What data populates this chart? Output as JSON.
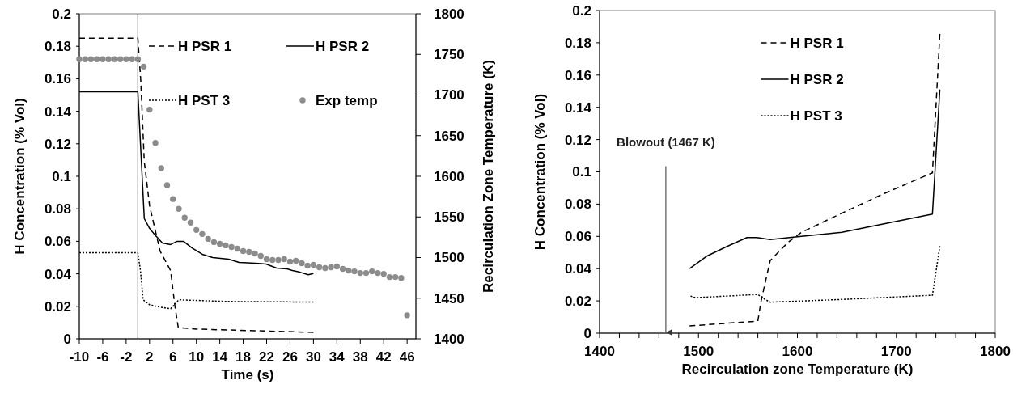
{
  "chart_data": [
    {
      "type": "line",
      "xlabel": "Time (s)",
      "ylabel": "H Concentration (% Vol)",
      "y2label": "Recirculation Zone Temperature (K)",
      "xlim": [
        -10,
        47.5
      ],
      "xticks": [
        -10,
        -6,
        -2,
        2,
        6,
        10,
        14,
        18,
        22,
        26,
        30,
        34,
        38,
        42,
        46
      ],
      "ylim": [
        0,
        0.2
      ],
      "yticks": [
        0,
        0.02,
        0.04,
        0.06,
        0.08,
        0.1,
        0.12,
        0.14,
        0.16,
        0.18,
        0.2
      ],
      "y2lim": [
        1400,
        1800
      ],
      "y2ticks": [
        1400,
        1450,
        1500,
        1550,
        1600,
        1650,
        1700,
        1750,
        1800
      ],
      "grid": false,
      "legend": "top right",
      "ref_lines": [
        {
          "axis": "x",
          "value": 0,
          "color": "#000000",
          "line_style": "solid"
        }
      ],
      "series": [
        {
          "name": "H PSR 1",
          "color": "#000000",
          "line_style": "dashed",
          "x": [
            -10,
            0,
            0.5,
            1.1,
            2,
            3.8,
            5.6,
            6.3,
            6.9,
            10,
            20,
            30
          ],
          "values": [
            0.185,
            0.185,
            0.159,
            0.109,
            0.082,
            0.054,
            0.042,
            0.021,
            0.007,
            0.006,
            0.005,
            0.004
          ]
        },
        {
          "name": "H PSR 2",
          "color": "#000000",
          "line_style": "solid",
          "x": [
            -10,
            0,
            1.1,
            2,
            2.9,
            4.2,
            5.6,
            6.7,
            7.8,
            9.2,
            11,
            12.8,
            15.5,
            17.3,
            20.1,
            21.9,
            23.7,
            25.5,
            26.4,
            27.7,
            29.1,
            30
          ],
          "values": [
            0.152,
            0.152,
            0.074,
            0.068,
            0.064,
            0.059,
            0.058,
            0.06,
            0.06,
            0.056,
            0.052,
            0.05,
            0.049,
            0.047,
            0.0465,
            0.046,
            0.0435,
            0.043,
            0.042,
            0.041,
            0.0394,
            0.0402
          ]
        },
        {
          "name": "H PST 3",
          "color": "#000000",
          "line_style": "dotted",
          "x": [
            -10,
            0,
            0.45,
            0.9,
            2,
            3.8,
            5.6,
            6.5,
            7,
            15,
            30
          ],
          "values": [
            0.053,
            0.053,
            0.042,
            0.024,
            0.021,
            0.0195,
            0.0185,
            0.022,
            0.024,
            0.023,
            0.0226
          ]
        },
        {
          "name": "Exp temp",
          "type": "scatter",
          "axis": "y2",
          "marker": "circle",
          "color": "#8c8c8c",
          "x": [
            -10,
            -9,
            -8,
            -7,
            -6,
            -5,
            -4,
            -3,
            -2,
            -1,
            0,
            1,
            2,
            3,
            4,
            5,
            6,
            7,
            8,
            9,
            10,
            11,
            12,
            13,
            14,
            15,
            16,
            17,
            18,
            19,
            20,
            21,
            22,
            23,
            24,
            25,
            26,
            27,
            28,
            29,
            30,
            31,
            32,
            33,
            34,
            35,
            36,
            37,
            38,
            39,
            40,
            41,
            42,
            43,
            44,
            45,
            46
          ],
          "values": [
            1744,
            1744,
            1744,
            1744,
            1744,
            1744,
            1744,
            1744,
            1744,
            1744,
            1744,
            1735,
            1682,
            1641,
            1610,
            1589,
            1572,
            1560,
            1549,
            1543,
            1534,
            1529,
            1523,
            1519,
            1517,
            1515,
            1513,
            1511,
            1508,
            1507,
            1505,
            1502,
            1498,
            1497,
            1497,
            1498,
            1495,
            1496,
            1493,
            1490,
            1491,
            1488,
            1487,
            1488,
            1489,
            1486,
            1484,
            1483,
            1481,
            1481,
            1483,
            1481,
            1480,
            1476,
            1476,
            1475,
            1429
          ]
        }
      ]
    },
    {
      "type": "line",
      "xlabel": "Recirculation zone Temperature (K)",
      "ylabel": "H Concentration (% Vol)",
      "xlim": [
        1400,
        1800
      ],
      "xticks": [
        1400,
        {
          "value": 1420,
          "label": null
        },
        {
          "value": 1440,
          "label": null
        },
        {
          "value": 1460,
          "label": null
        },
        {
          "value": 1480,
          "label": null
        },
        1500,
        {
          "value": 1520,
          "label": null
        },
        {
          "value": 1540,
          "label": null
        },
        {
          "value": 1560,
          "label": null
        },
        {
          "value": 1580,
          "label": null
        },
        1600,
        {
          "value": 1620,
          "label": null
        },
        {
          "value": 1640,
          "label": null
        },
        {
          "value": 1660,
          "label": null
        },
        {
          "value": 1680,
          "label": null
        },
        1700,
        {
          "value": 1720,
          "label": null
        },
        {
          "value": 1740,
          "label": null
        },
        {
          "value": 1760,
          "label": null
        },
        {
          "value": 1780,
          "label": null
        },
        1800
      ],
      "ylim": [
        0,
        0.2
      ],
      "yticks": [
        0,
        0.02,
        0.04,
        0.06,
        0.08,
        0.1,
        0.12,
        0.14,
        0.16,
        0.18,
        0.2
      ],
      "grid": false,
      "legend": "top",
      "ref_lines": [
        {
          "axis": "x",
          "value": 1467,
          "label": "Blowout (1467 K)",
          "color": "#333333",
          "line_style": "solid"
        }
      ],
      "series": [
        {
          "name": "H PSR 1",
          "color": "#000000",
          "line_style": "dashed",
          "x": [
            1491,
            1560,
            1563,
            1571,
            1572.5,
            1590,
            1604,
            1645,
            1686,
            1736.5,
            1744
          ],
          "values": [
            0.0045,
            0.0075,
            0.019,
            0.041,
            0.045,
            0.056,
            0.0625,
            0.0744,
            0.0861,
            0.0994,
            0.1855
          ]
        },
        {
          "name": "H PSR 2",
          "color": "#000000",
          "line_style": "solid",
          "x": [
            1491,
            1508,
            1527.5,
            1549,
            1559,
            1572.5,
            1598,
            1645,
            1685.6,
            1736.5,
            1744
          ],
          "values": [
            0.04,
            0.0476,
            0.0534,
            0.0593,
            0.0593,
            0.058,
            0.0597,
            0.0625,
            0.0675,
            0.0738,
            0.151
          ]
        },
        {
          "name": "H PST 3",
          "color": "#000000",
          "line_style": "dotted",
          "x": [
            1492,
            1497,
            1560,
            1567,
            1572.5,
            1645,
            1736.5,
            1744
          ],
          "values": [
            0.023,
            0.022,
            0.024,
            0.021,
            0.0192,
            0.0209,
            0.0235,
            0.054
          ]
        }
      ]
    }
  ]
}
